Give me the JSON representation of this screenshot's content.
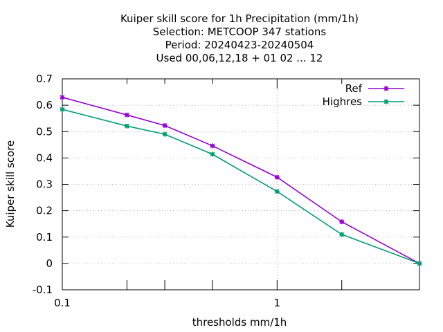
{
  "chart_data": {
    "type": "line",
    "title_lines": [
      "Kuiper skill score  for 1h Precipitation (mm/1h)",
      "Selection: METCOOP    347 stations",
      "Period: 20240423-20240504",
      "Used  00,06,12,18 + 01 02 ... 12"
    ],
    "xlabel": "thresholds mm/1h",
    "ylabel": "Kuiper skill score",
    "x_scale": "log",
    "xlim": [
      0.1,
      4.6
    ],
    "ylim": [
      -0.1,
      0.7
    ],
    "x_tick_labels": [
      {
        "value": 0.1,
        "label": "0.1"
      },
      {
        "value": 1,
        "label": "1"
      }
    ],
    "x_minor_ticks": [
      0.2,
      0.3,
      0.5,
      2,
      4.6
    ],
    "y_ticks": [
      {
        "value": -0.1,
        "label": "-0.1"
      },
      {
        "value": 0,
        "label": "0"
      },
      {
        "value": 0.1,
        "label": "0.1"
      },
      {
        "value": 0.2,
        "label": "0.2"
      },
      {
        "value": 0.3,
        "label": "0.3"
      },
      {
        "value": 0.4,
        "label": "0.4"
      },
      {
        "value": 0.5,
        "label": "0.5"
      },
      {
        "value": 0.6,
        "label": "0.6"
      },
      {
        "value": 0.7,
        "label": "0.7"
      }
    ],
    "grid": true,
    "legend_position": "top-right",
    "series": [
      {
        "name": "Ref",
        "color": "#9400d3",
        "x": [
          0.1,
          0.2,
          0.3,
          0.5,
          1,
          2,
          4.6
        ],
        "y": [
          0.63,
          0.563,
          0.523,
          0.446,
          0.327,
          0.158,
          0.0
        ]
      },
      {
        "name": "Highres",
        "color": "#009e73",
        "x": [
          0.1,
          0.2,
          0.3,
          0.5,
          1,
          2,
          4.6
        ],
        "y": [
          0.584,
          0.521,
          0.49,
          0.414,
          0.273,
          0.11,
          0.0
        ]
      }
    ]
  }
}
